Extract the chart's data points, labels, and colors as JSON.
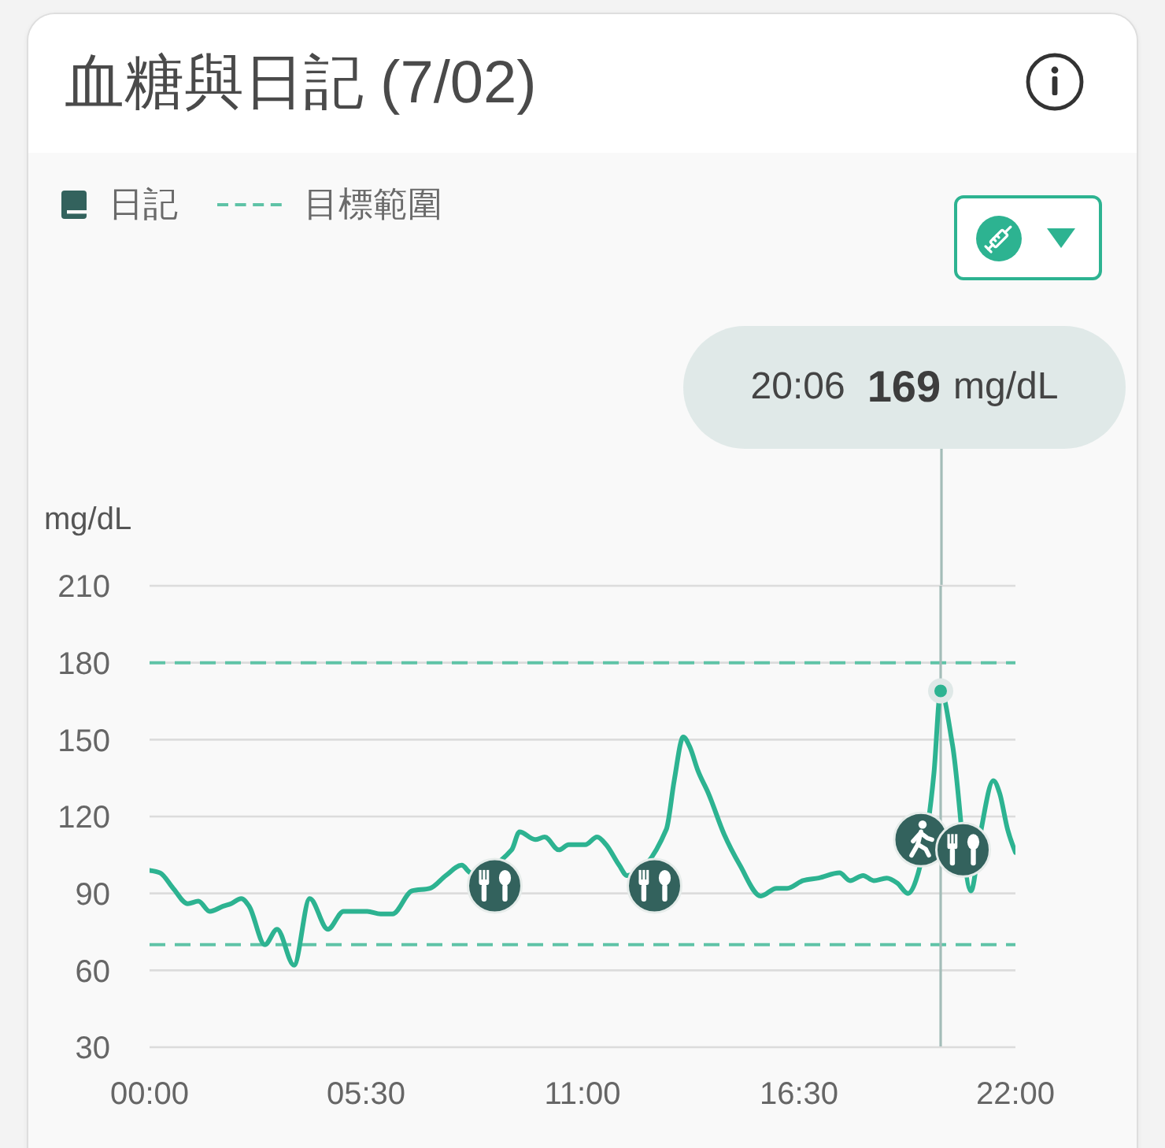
{
  "chart_data": {
    "type": "line",
    "title": "血糖與日記 (7/02)",
    "ylabel": "mg/dL",
    "xlim": [
      0,
      22
    ],
    "xticks": [
      {
        "value": 0,
        "label": "00:00"
      },
      {
        "value": 5.5,
        "label": "05:30"
      },
      {
        "value": 11,
        "label": "11:00"
      },
      {
        "value": 16.5,
        "label": "16:30"
      },
      {
        "value": 22,
        "label": "22:00"
      }
    ],
    "ylim": [
      30,
      210
    ],
    "yticks": [
      30,
      60,
      90,
      120,
      150,
      180,
      210
    ],
    "grid": "y",
    "legend": "top left",
    "series": [
      {
        "color": "#2db391",
        "x": [
          0,
          0.27,
          0.6,
          0.97,
          1.24,
          1.53,
          1.87,
          2.07,
          2.33,
          2.53,
          2.93,
          3.24,
          3.67,
          4.07,
          4.53,
          4.93,
          5.53,
          5.87,
          6.17,
          6.67,
          7.13,
          7.53,
          7.93,
          8.17,
          9.2,
          9.4,
          9.8,
          10.04,
          10.4,
          10.65,
          11.07,
          11.37,
          11.6,
          11.93,
          12.13,
          13.13,
          13.33,
          13.56,
          13.73,
          13.93,
          14.2,
          14.6,
          15.0,
          15.53,
          15.93,
          16.2,
          16.6,
          17.0,
          17.53,
          17.8,
          18.13,
          18.4,
          18.73,
          19.0,
          19.27,
          19.47,
          19.93,
          20.1,
          20.4,
          20.87,
          21.13,
          21.44,
          21.6,
          21.8,
          22
        ],
        "values": [
          99,
          98,
          92,
          86,
          87,
          83,
          85,
          86,
          88,
          85,
          70,
          76,
          62,
          88,
          76,
          83,
          83,
          82,
          82,
          91,
          92,
          97,
          101,
          98,
          107,
          114,
          111,
          112,
          107,
          109,
          109,
          112,
          109,
          101,
          97,
          115,
          134,
          151,
          147,
          138,
          129,
          113,
          101,
          89,
          92,
          92,
          95,
          96,
          98,
          95,
          97,
          95,
          96,
          94,
          90,
          95,
          137,
          169,
          148,
          91,
          115,
          134,
          129,
          115,
          106
        ]
      },
      {
        "type": "scatter",
        "name": "日記",
        "color": "#33625d",
        "marker": "circle",
        "x": [
          8.77,
          12.83,
          19.6,
          20.67
        ],
        "values": [
          93,
          93,
          111,
          107
        ]
      }
    ],
    "ref_lines": [
      {
        "axis": "y",
        "value": 180,
        "label": "目標範圍",
        "color": "#5fc3a7",
        "line_style": "dashed"
      },
      {
        "axis": "y",
        "value": 70,
        "color": "#5fc3a7",
        "line_style": "dashed"
      },
      {
        "axis": "x",
        "value": 20.1,
        "color": "#a3bcb8"
      }
    ],
    "annotations": [
      "20:06 169 mg/dL"
    ]
  }
}
